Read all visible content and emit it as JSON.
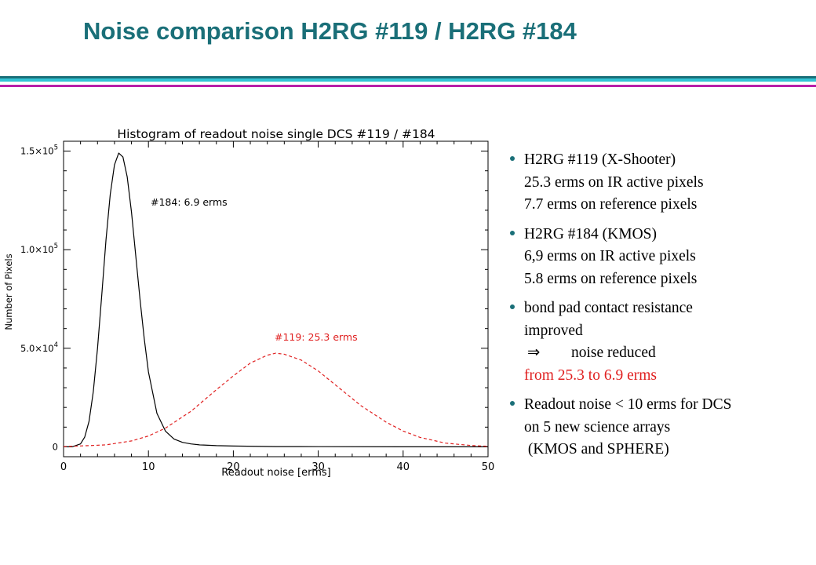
{
  "slide": {
    "title": "Noise comparison H2RG #119 / H2RG #184"
  },
  "colors": {
    "title": "#1a6f78",
    "rule_teal": "#1a6f78",
    "rule_cyan": "#33c3d3",
    "rule_magenta": "#b81fa8",
    "accent_red": "#e02020",
    "bullet": "#1a6f78"
  },
  "chart_data": {
    "type": "line",
    "title": "Histogram of readout noise single DCS #119  / #184",
    "xlabel": "Readout noise [erms]",
    "ylabel": "Number of Pixels",
    "xlim": [
      0,
      50
    ],
    "ylim": [
      -5000,
      155000
    ],
    "xticks": [
      0,
      10,
      20,
      30,
      40,
      50
    ],
    "yticks": [
      {
        "value": 0,
        "mant": "0",
        "exp": ""
      },
      {
        "value": 50000,
        "mant": "5.0×10",
        "exp": "4"
      },
      {
        "value": 100000,
        "mant": "1.0×10",
        "exp": "5"
      },
      {
        "value": 150000,
        "mant": "1.5×10",
        "exp": "5"
      }
    ],
    "grid": false,
    "series": [
      {
        "label": "#184: 6.9 erms",
        "color": "#000000",
        "style": "solid",
        "x": [
          0,
          1,
          2,
          2.5,
          3,
          3.5,
          4,
          4.5,
          5,
          5.5,
          6,
          6.5,
          7,
          7.5,
          8,
          8.5,
          9,
          9.5,
          10,
          11,
          12,
          13,
          14,
          15,
          16,
          18,
          20,
          25,
          30,
          40,
          50
        ],
        "y": [
          0,
          0,
          1500,
          5000,
          13000,
          28000,
          50000,
          77000,
          105000,
          128000,
          143000,
          149000,
          147000,
          137000,
          119000,
          97000,
          75000,
          55000,
          38000,
          17000,
          8000,
          4000,
          2300,
          1500,
          1000,
          600,
          400,
          150,
          80,
          20,
          0
        ]
      },
      {
        "label": "#119: 25.3 erms",
        "color": "#e02020",
        "style": "dashed",
        "x": [
          0,
          5,
          8,
          10,
          12,
          15,
          18,
          20,
          22,
          24,
          25,
          26,
          28,
          30,
          32,
          35,
          38,
          40,
          42,
          45,
          48,
          50
        ],
        "y": [
          100,
          1000,
          3000,
          5500,
          9500,
          18000,
          29000,
          36000,
          42500,
          46500,
          47500,
          47000,
          44000,
          38500,
          31500,
          21000,
          12500,
          8000,
          4800,
          1900,
          700,
          300
        ]
      }
    ]
  },
  "bullets": [
    {
      "lines": [
        "H2RG #119 (X-Shooter)",
        "25.3 erms on IR active pixels",
        "7.7 erms on reference pixels"
      ]
    },
    {
      "lines": [
        "H2RG #184 (KMOS)",
        "6,9 erms on IR active pixels",
        "5.8 erms on reference pixels"
      ]
    },
    {
      "lines": [
        "bond pad contact resistance",
        "improved"
      ],
      "implies_symbol": "⇒",
      "implies_text": "noise reduced",
      "highlight": "from 25.3 to 6.9 erms"
    },
    {
      "lines": [
        "Readout noise < 10 erms for DCS",
        "on 5 new science arrays",
        " (KMOS and SPHERE)"
      ]
    }
  ]
}
